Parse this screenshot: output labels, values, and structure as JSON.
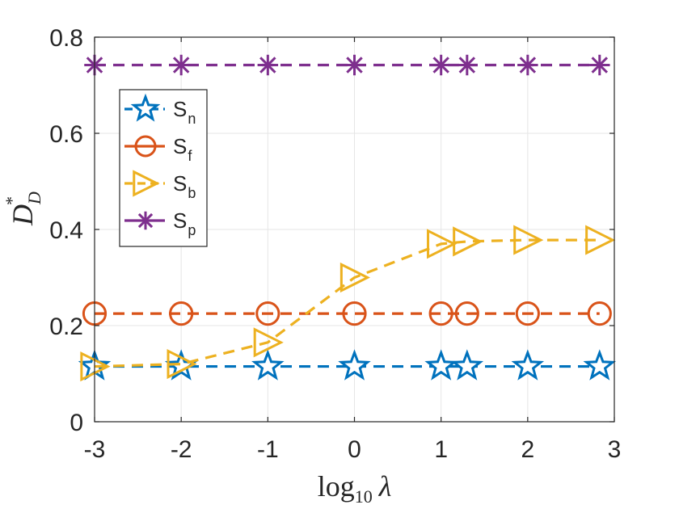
{
  "chart_data": {
    "type": "line",
    "x": [
      -3,
      -2,
      -1,
      0,
      1,
      1.3,
      2,
      2.83
    ],
    "xlim": [
      -3,
      3
    ],
    "ylim": [
      0,
      0.8
    ],
    "xticks": [
      -3,
      -2,
      -1,
      0,
      1,
      2,
      3
    ],
    "yticks": [
      0,
      0.2,
      0.4,
      0.6,
      0.8
    ],
    "xtick_labels": [
      "-3",
      "-2",
      "-1",
      "0",
      "1",
      "2",
      "3"
    ],
    "ytick_labels": [
      "0",
      "0.2",
      "0.4",
      "0.6",
      "0.8"
    ],
    "grid": true,
    "legend_position": "top-left",
    "xlabel": {
      "base": "log",
      "sub": "10",
      "symbol": "λ"
    },
    "ylabel": {
      "base": "D",
      "sup": "*",
      "sub": "D"
    },
    "series": [
      {
        "name": "S_n",
        "label_main": "S",
        "label_sub": "n",
        "color": "#0072BD",
        "marker": "star",
        "values": [
          0.115,
          0.115,
          0.115,
          0.115,
          0.115,
          0.115,
          0.115,
          0.115
        ]
      },
      {
        "name": "S_f",
        "label_main": "S",
        "label_sub": "f",
        "color": "#D95319",
        "marker": "circle",
        "values": [
          0.225,
          0.225,
          0.225,
          0.225,
          0.225,
          0.225,
          0.225,
          0.225
        ]
      },
      {
        "name": "S_b",
        "label_main": "S",
        "label_sub": "b",
        "color": "#EDB120",
        "marker": "triangle-right",
        "values": [
          0.115,
          0.12,
          0.165,
          0.3,
          0.37,
          0.375,
          0.378,
          0.378
        ]
      },
      {
        "name": "S_p",
        "label_main": "S",
        "label_sub": "p",
        "color": "#7E2F8E",
        "marker": "asterisk",
        "values": [
          0.742,
          0.742,
          0.742,
          0.742,
          0.742,
          0.742,
          0.742,
          0.742
        ]
      }
    ]
  }
}
